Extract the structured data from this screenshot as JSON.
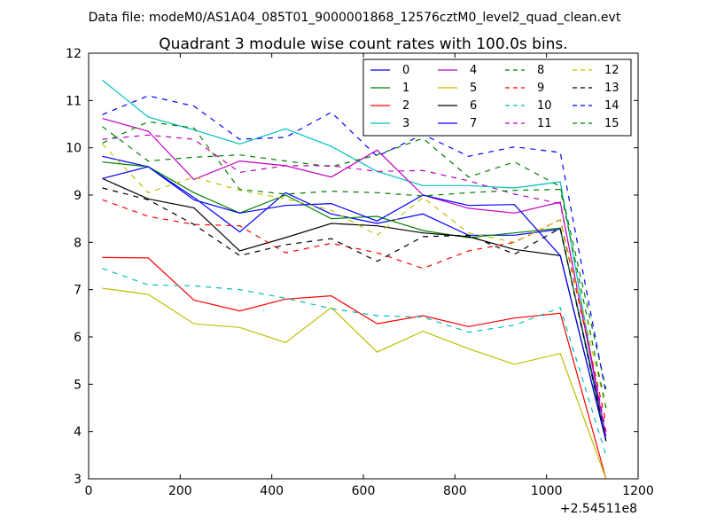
{
  "chart_data": {
    "type": "line",
    "suptitle": "Data file: modeM0/AS1A04_085T01_9000001868_12576cztM0_level2_quad_clean.evt",
    "title": "Quadrant 3 module wise count rates with 100.0s bins.",
    "xlabel": "",
    "ylabel": "",
    "x_offset_label": "+2.54511e8",
    "xlim": [
      0,
      1200
    ],
    "ylim": [
      3,
      12
    ],
    "xticks": [
      0,
      200,
      400,
      600,
      800,
      1000,
      1200
    ],
    "yticks": [
      3,
      4,
      5,
      6,
      7,
      8,
      9,
      10,
      11,
      12
    ],
    "legend_position": "top-right",
    "x": [
      30,
      130,
      230,
      330,
      430,
      530,
      630,
      730,
      830,
      930,
      1030,
      1130
    ],
    "series": [
      {
        "name": "0",
        "color": "#0000ff",
        "dash": "solid",
        "values": [
          9.82,
          9.6,
          8.95,
          8.22,
          9.05,
          8.6,
          8.4,
          8.6,
          8.15,
          8.15,
          8.28,
          3.9
        ]
      },
      {
        "name": "1",
        "color": "#008000",
        "dash": "solid",
        "values": [
          9.7,
          9.6,
          9.05,
          8.62,
          9.0,
          8.5,
          8.55,
          8.25,
          8.1,
          8.2,
          8.3,
          3.8
        ]
      },
      {
        "name": "2",
        "color": "#ff0000",
        "dash": "solid",
        "values": [
          7.68,
          7.67,
          6.78,
          6.55,
          6.8,
          6.87,
          6.28,
          6.45,
          6.22,
          6.4,
          6.5,
          3.0
        ]
      },
      {
        "name": "3",
        "color": "#00bfbf",
        "dash": "solid",
        "values": [
          11.43,
          10.65,
          10.38,
          10.08,
          10.4,
          10.03,
          9.5,
          9.2,
          9.2,
          9.15,
          9.28,
          3.8
        ]
      },
      {
        "name": "4",
        "color": "#bf00bf",
        "dash": "solid",
        "values": [
          10.62,
          10.35,
          9.33,
          9.72,
          9.62,
          9.38,
          9.95,
          9.0,
          8.72,
          8.62,
          8.85,
          3.9
        ]
      },
      {
        "name": "5",
        "color": "#bfbf00",
        "dash": "solid",
        "values": [
          7.03,
          6.9,
          6.28,
          6.2,
          5.88,
          6.62,
          5.68,
          6.12,
          5.75,
          5.42,
          5.65,
          3.0
        ]
      },
      {
        "name": "6",
        "color": "#000000",
        "dash": "solid",
        "values": [
          9.35,
          8.92,
          8.73,
          7.82,
          8.1,
          8.4,
          8.35,
          8.2,
          8.12,
          7.85,
          7.72,
          3.8
        ]
      },
      {
        "name": "7",
        "color": "#0000ff",
        "dash": "solid",
        "values": [
          9.35,
          9.6,
          8.9,
          8.62,
          8.78,
          8.82,
          8.45,
          9.0,
          8.78,
          8.8,
          7.72,
          3.8
        ]
      },
      {
        "name": "8",
        "color": "#008000",
        "dash": "dashed",
        "values": [
          10.45,
          9.72,
          9.8,
          9.85,
          9.72,
          9.6,
          9.85,
          10.2,
          9.38,
          9.7,
          9.18,
          4.9
        ]
      },
      {
        "name": "9",
        "color": "#ff0000",
        "dash": "dashed",
        "values": [
          8.9,
          8.55,
          8.38,
          8.35,
          7.78,
          7.98,
          7.78,
          7.45,
          7.82,
          8.0,
          8.48,
          4.2
        ]
      },
      {
        "name": "10",
        "color": "#00bfbf",
        "dash": "dashed",
        "values": [
          7.45,
          7.1,
          7.08,
          7.0,
          6.82,
          6.6,
          6.45,
          6.42,
          6.1,
          6.25,
          6.62,
          3.5
        ]
      },
      {
        "name": "11",
        "color": "#bf00bf",
        "dash": "dashed",
        "values": [
          10.18,
          10.27,
          10.18,
          9.48,
          9.62,
          9.62,
          9.5,
          9.52,
          9.3,
          9.02,
          8.82,
          4.0
        ]
      },
      {
        "name": "12",
        "color": "#bfbf00",
        "dash": "dashed",
        "values": [
          10.08,
          9.05,
          9.38,
          9.1,
          8.92,
          8.68,
          8.15,
          8.95,
          8.2,
          8.0,
          8.48,
          4.5
        ]
      },
      {
        "name": "13",
        "color": "#000000",
        "dash": "dashed",
        "values": [
          9.15,
          8.9,
          8.38,
          7.72,
          7.95,
          8.08,
          7.6,
          8.12,
          8.15,
          7.75,
          8.3,
          3.8
        ]
      },
      {
        "name": "14",
        "color": "#0000ff",
        "dash": "dashed",
        "values": [
          10.7,
          11.1,
          10.88,
          10.18,
          10.22,
          10.75,
          9.82,
          10.28,
          9.82,
          10.02,
          9.9,
          4.8
        ]
      },
      {
        "name": "15",
        "color": "#008000",
        "dash": "dashed",
        "values": [
          10.1,
          10.55,
          10.42,
          9.12,
          9.02,
          9.08,
          9.05,
          8.98,
          9.05,
          9.1,
          9.12,
          4.5
        ]
      }
    ]
  }
}
